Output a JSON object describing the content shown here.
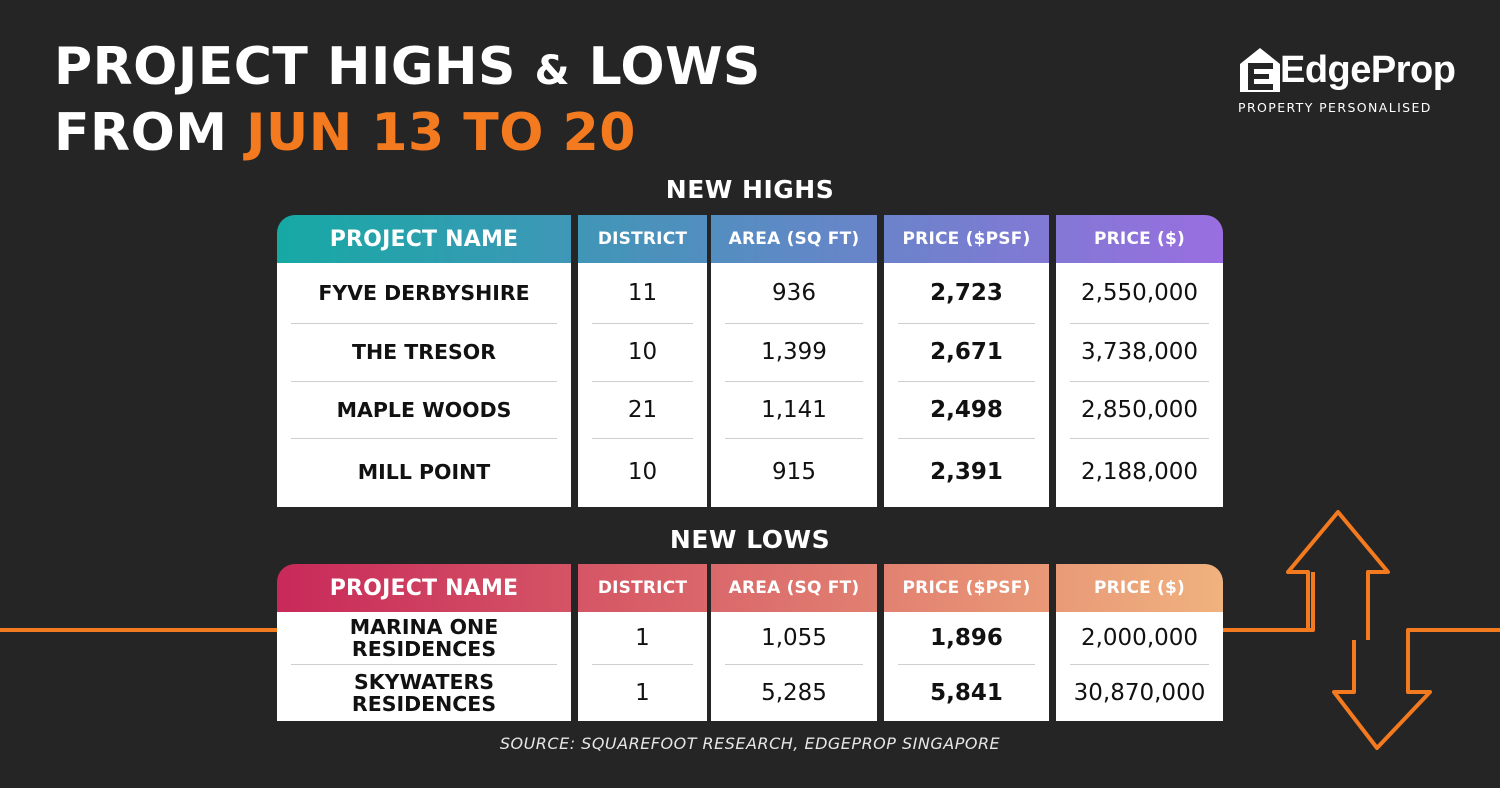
{
  "title": {
    "line1_a": "PROJECT HIGHS ",
    "line1_amp": "&",
    "line1_b": " LOWS",
    "line2_a": "FROM ",
    "line2_accent": "JUN 13 TO 20"
  },
  "logo": {
    "name": "EdgeProp",
    "tagline": "PROPERTY PERSONALISED"
  },
  "colors": {
    "accent_orange": "#f47a20",
    "highs_gradient": [
      "#16a9a4",
      "#9a6ee0"
    ],
    "lows_gradient": [
      "#c8295a",
      "#f0b27e"
    ]
  },
  "highs": {
    "heading": "NEW HIGHS",
    "columns": [
      "PROJECT NAME",
      "DISTRICT",
      "AREA (SQ FT)",
      "PRICE ($PSF)",
      "PRICE ($)"
    ],
    "rows": [
      [
        "FYVE DERBYSHIRE",
        "11",
        "936",
        "2,723",
        "2,550,000"
      ],
      [
        "THE TRESOR",
        "10",
        "1,399",
        "2,671",
        "3,738,000"
      ],
      [
        "MAPLE WOODS",
        "21",
        "1,141",
        "2,498",
        "2,850,000"
      ],
      [
        "MILL POINT",
        "10",
        "915",
        "2,391",
        "2,188,000"
      ]
    ]
  },
  "lows": {
    "heading": "NEW LOWS",
    "columns": [
      "PROJECT NAME",
      "DISTRICT",
      "AREA (SQ FT)",
      "PRICE ($PSF)",
      "PRICE ($)"
    ],
    "rows": [
      [
        "MARINA ONE RESIDENCES",
        "1",
        "1,055",
        "1,896",
        "2,000,000"
      ],
      [
        "SKYWATERS RESIDENCES",
        "1",
        "5,285",
        "5,841",
        "30,870,000"
      ]
    ]
  },
  "source": "SOURCE: SQUAREFOOT RESEARCH, EDGEPROP SINGAPORE",
  "icons": [
    "house-icon",
    "up-arrow-icon",
    "down-arrow-icon"
  ]
}
